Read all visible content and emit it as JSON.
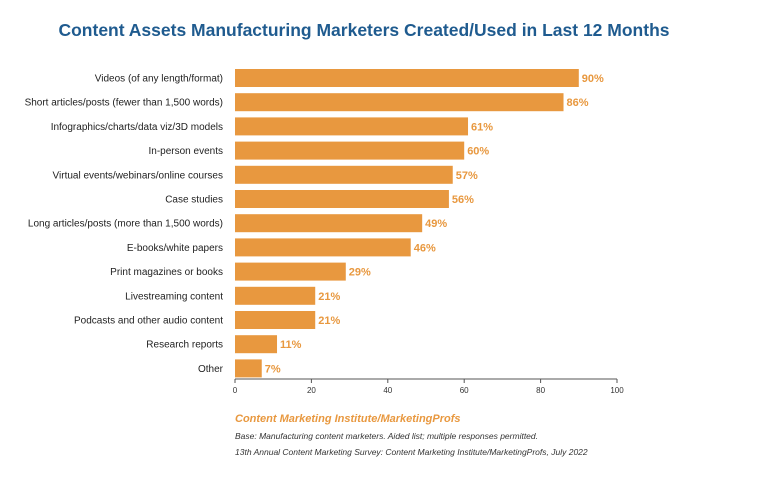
{
  "chart_data": {
    "type": "bar",
    "orientation": "horizontal",
    "title": "Content Assets Manufacturing Marketers Created/Used in Last 12 Months",
    "categories": [
      "Videos (of any length/format)",
      "Short articles/posts (fewer than 1,500 words)",
      "Infographics/charts/data viz/3D models",
      "In-person events",
      "Virtual events/webinars/online courses",
      "Case studies",
      "Long articles/posts (more than 1,500 words)",
      "E-books/white papers",
      "Print magazines or books",
      "Livestreaming content",
      "Podcasts and other audio content",
      "Research reports",
      "Other"
    ],
    "values": [
      90,
      86,
      61,
      60,
      57,
      56,
      49,
      46,
      29,
      21,
      21,
      11,
      7
    ],
    "value_labels": [
      "90%",
      "86%",
      "61%",
      "60%",
      "57%",
      "56%",
      "49%",
      "46%",
      "29%",
      "21%",
      "21%",
      "11%",
      "7%"
    ],
    "xlim": [
      0,
      100
    ],
    "xticks": [
      0,
      20,
      40,
      60,
      80,
      100
    ],
    "bar_color": "#e8983f",
    "label_color": "#e8983f",
    "grid": false,
    "legend": "none"
  },
  "source": "Content Marketing Institute/MarketingProfs",
  "notes": [
    "Base: Manufacturing content marketers. Aided list; multiple responses permitted.",
    "13th Annual Content Marketing Survey: Content Marketing Institute/MarketingProfs, July 2022"
  ],
  "colors": {
    "title": "#1f5b8f",
    "axis": "#555555"
  }
}
